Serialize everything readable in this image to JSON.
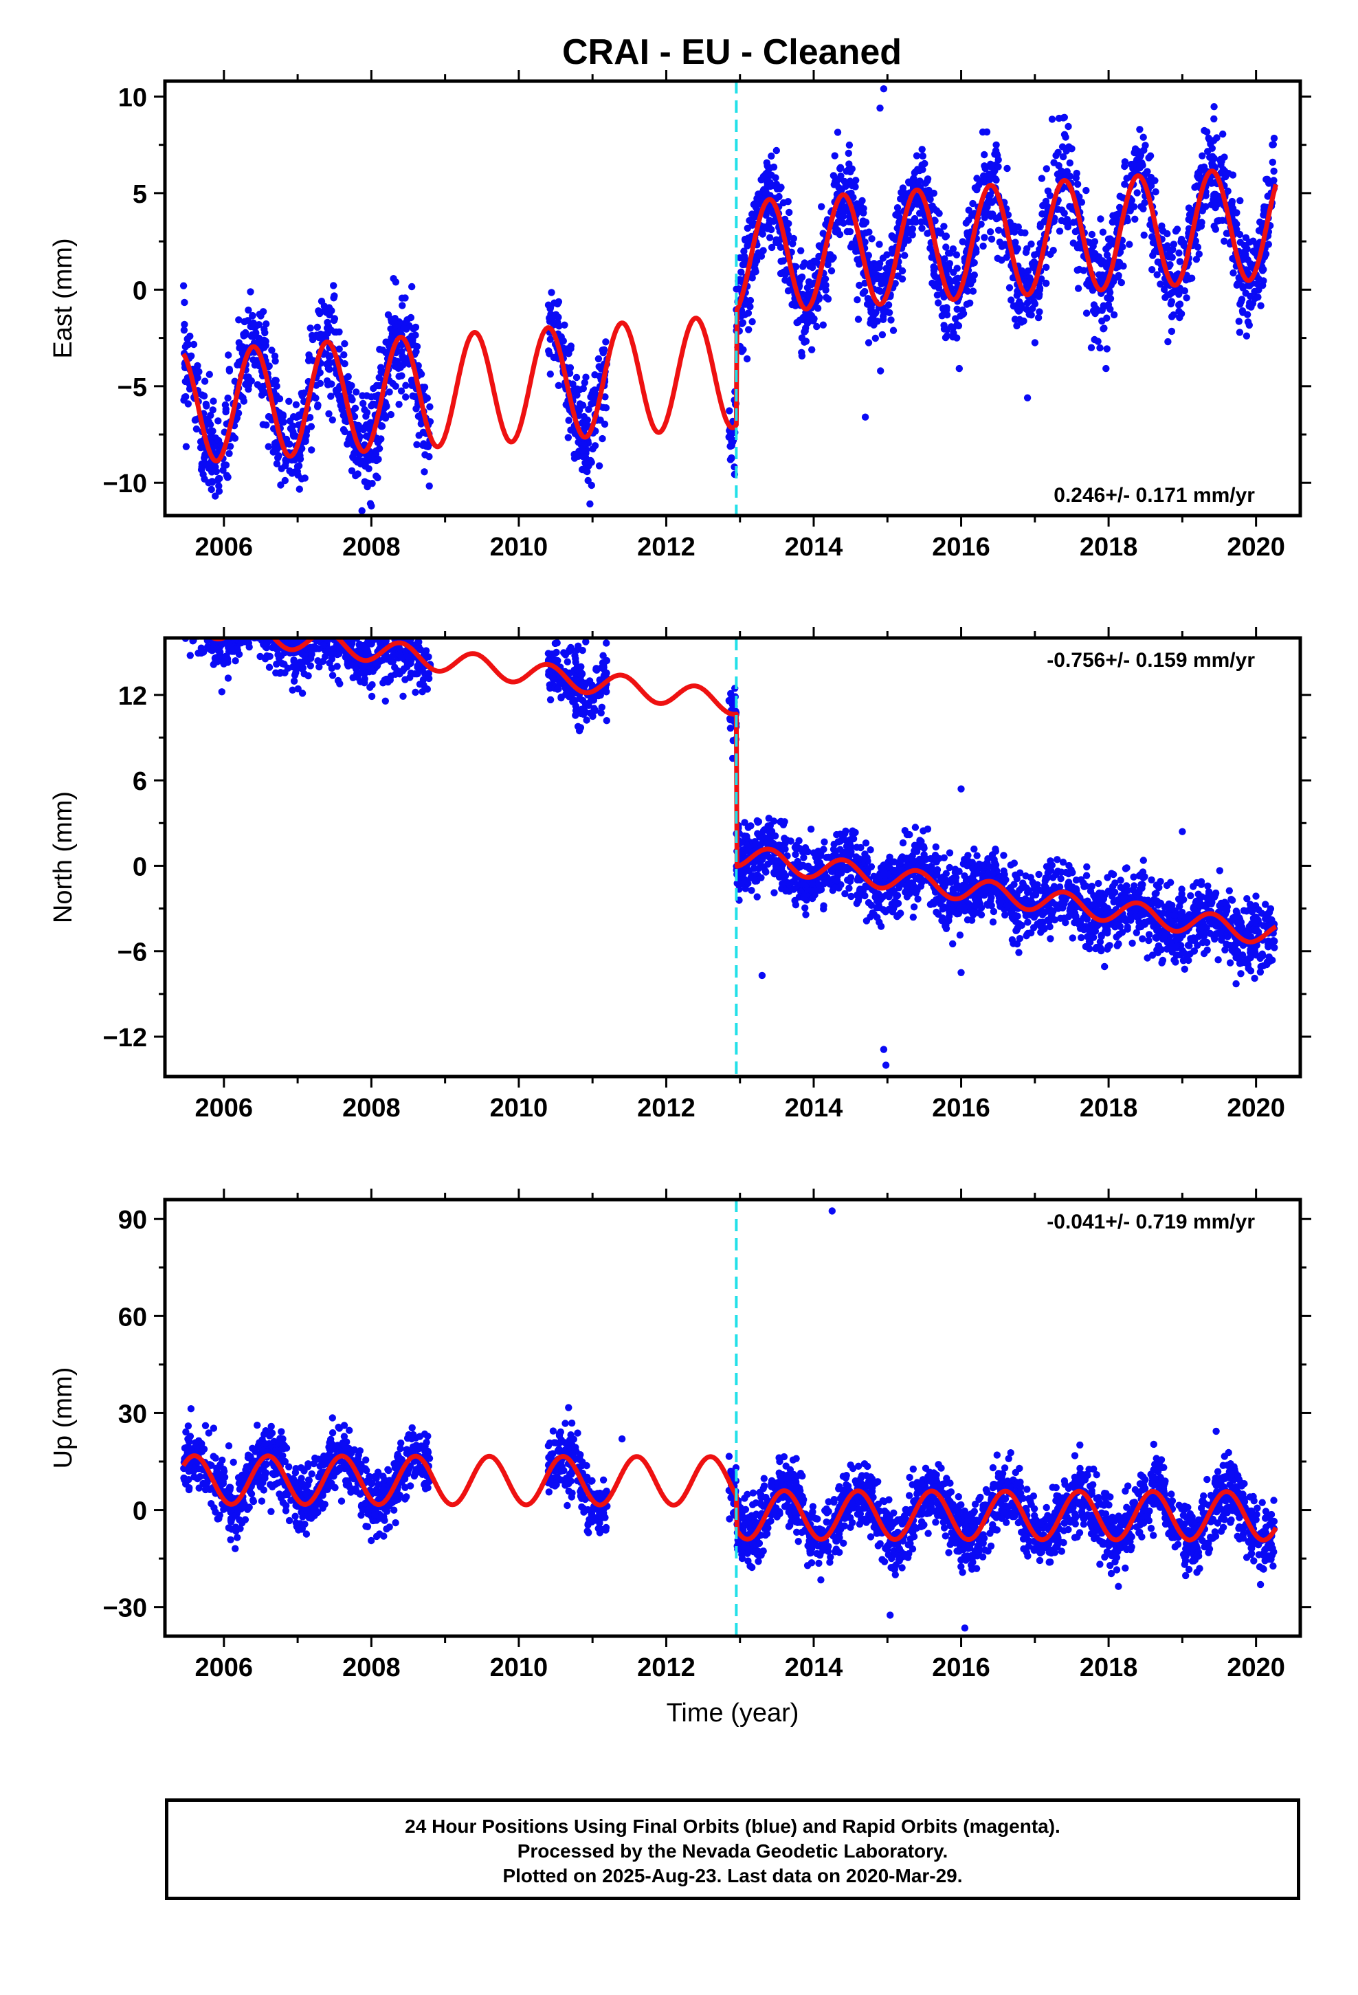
{
  "title": "CRAI  - EU - Cleaned",
  "colors": {
    "final_orbits": "#0a0af5",
    "model": "#ee1111",
    "offset": "#22e0e8",
    "frame": "#000000"
  },
  "chart_data": [
    {
      "type": "scatter",
      "ylabel": "East (mm)",
      "xlabel": "",
      "xlim": [
        2005.2,
        2020.6
      ],
      "ylim": [
        -11.7,
        10.8
      ],
      "xticks": [
        2006,
        2008,
        2010,
        2012,
        2014,
        2016,
        2018,
        2020
      ],
      "yticks": [
        -10,
        -5,
        0,
        5,
        10
      ],
      "ytick_labels": [
        "−10",
        "−5",
        "0",
        "5",
        "10"
      ],
      "offset_epoch": 2012.95,
      "rate_label": "0.246+/- 0.171 mm/yr",
      "rate_position": "bottom-right",
      "model": {
        "pre_level": -4.3,
        "post_level": 1.6,
        "rate": 0.246,
        "amplitude": 2.9,
        "phase_peak": 0.4
      },
      "data_segments": [
        [
          2005.45,
          2008.8
        ],
        [
          2010.4,
          2011.2
        ],
        [
          2012.85,
          2020.25
        ]
      ],
      "scatter_sd": 1.3,
      "outliers": [
        [
          2014.95,
          10.4
        ],
        [
          2014.9,
          9.4
        ],
        [
          2008.0,
          -11.2
        ],
        [
          2014.7,
          -6.6
        ],
        [
          2016.9,
          -5.6
        ],
        [
          2012.9,
          -7.9
        ]
      ]
    },
    {
      "type": "scatter",
      "ylabel": "North (mm)",
      "xlabel": "",
      "xlim": [
        2005.2,
        2020.6
      ],
      "ylim": [
        -14.8,
        16.0
      ],
      "xticks": [
        2006,
        2008,
        2010,
        2012,
        2014,
        2016,
        2018,
        2020
      ],
      "yticks": [
        -12,
        -6,
        0,
        6,
        12
      ],
      "ytick_labels": [
        "−12",
        "−6",
        "0",
        "6",
        "12"
      ],
      "offset_epoch": 2012.95,
      "rate_label": "-0.756+/- 0.159 mm/yr",
      "rate_position": "top-right",
      "model": {
        "pre_level": 11.6,
        "post_level": 0.9,
        "rate": -0.756,
        "amplitude": 0.8,
        "phase_peak": 0.4
      },
      "data_segments": [
        [
          2005.45,
          2008.8
        ],
        [
          2010.4,
          2011.2
        ],
        [
          2012.85,
          2020.25
        ]
      ],
      "scatter_sd": 1.2,
      "outliers": [
        [
          2014.95,
          -12.9
        ],
        [
          2014.98,
          -14.0
        ],
        [
          2016.0,
          5.4
        ],
        [
          2019.0,
          2.4
        ],
        [
          2013.3,
          -7.7
        ],
        [
          2016.0,
          -7.5
        ]
      ]
    },
    {
      "type": "scatter",
      "ylabel": "Up (mm)",
      "xlabel": "Time (year)",
      "xlim": [
        2005.2,
        2020.6
      ],
      "ylim": [
        -39.0,
        96.0
      ],
      "xticks": [
        2006,
        2008,
        2010,
        2012,
        2014,
        2016,
        2018,
        2020
      ],
      "yticks": [
        -30,
        0,
        30,
        60,
        90
      ],
      "ytick_labels": [
        "−30",
        "0",
        "30",
        "60",
        "90"
      ],
      "offset_epoch": 2012.95,
      "rate_label": "-0.041+/- 0.719 mm/yr",
      "rate_position": "top-right",
      "model": {
        "pre_level": 9.0,
        "post_level": -1.5,
        "rate": -0.041,
        "amplitude": 7.5,
        "phase_peak": 0.6
      },
      "data_segments": [
        [
          2005.45,
          2008.8
        ],
        [
          2010.4,
          2011.2
        ],
        [
          2012.85,
          2020.25
        ]
      ],
      "scatter_sd": 5.0,
      "outliers": [
        [
          2014.25,
          92.5
        ],
        [
          2016.05,
          -36.5
        ],
        [
          2011.1,
          -7.0
        ],
        [
          2011.4,
          22.0
        ]
      ]
    }
  ],
  "footer": {
    "line1": "24 Hour Positions Using Final Orbits (blue) and Rapid Orbits (magenta).",
    "line2": "Processed by the Nevada Geodetic Laboratory.",
    "line3": "Plotted on 2025-Aug-23. Last data on 2020-Mar-29."
  }
}
